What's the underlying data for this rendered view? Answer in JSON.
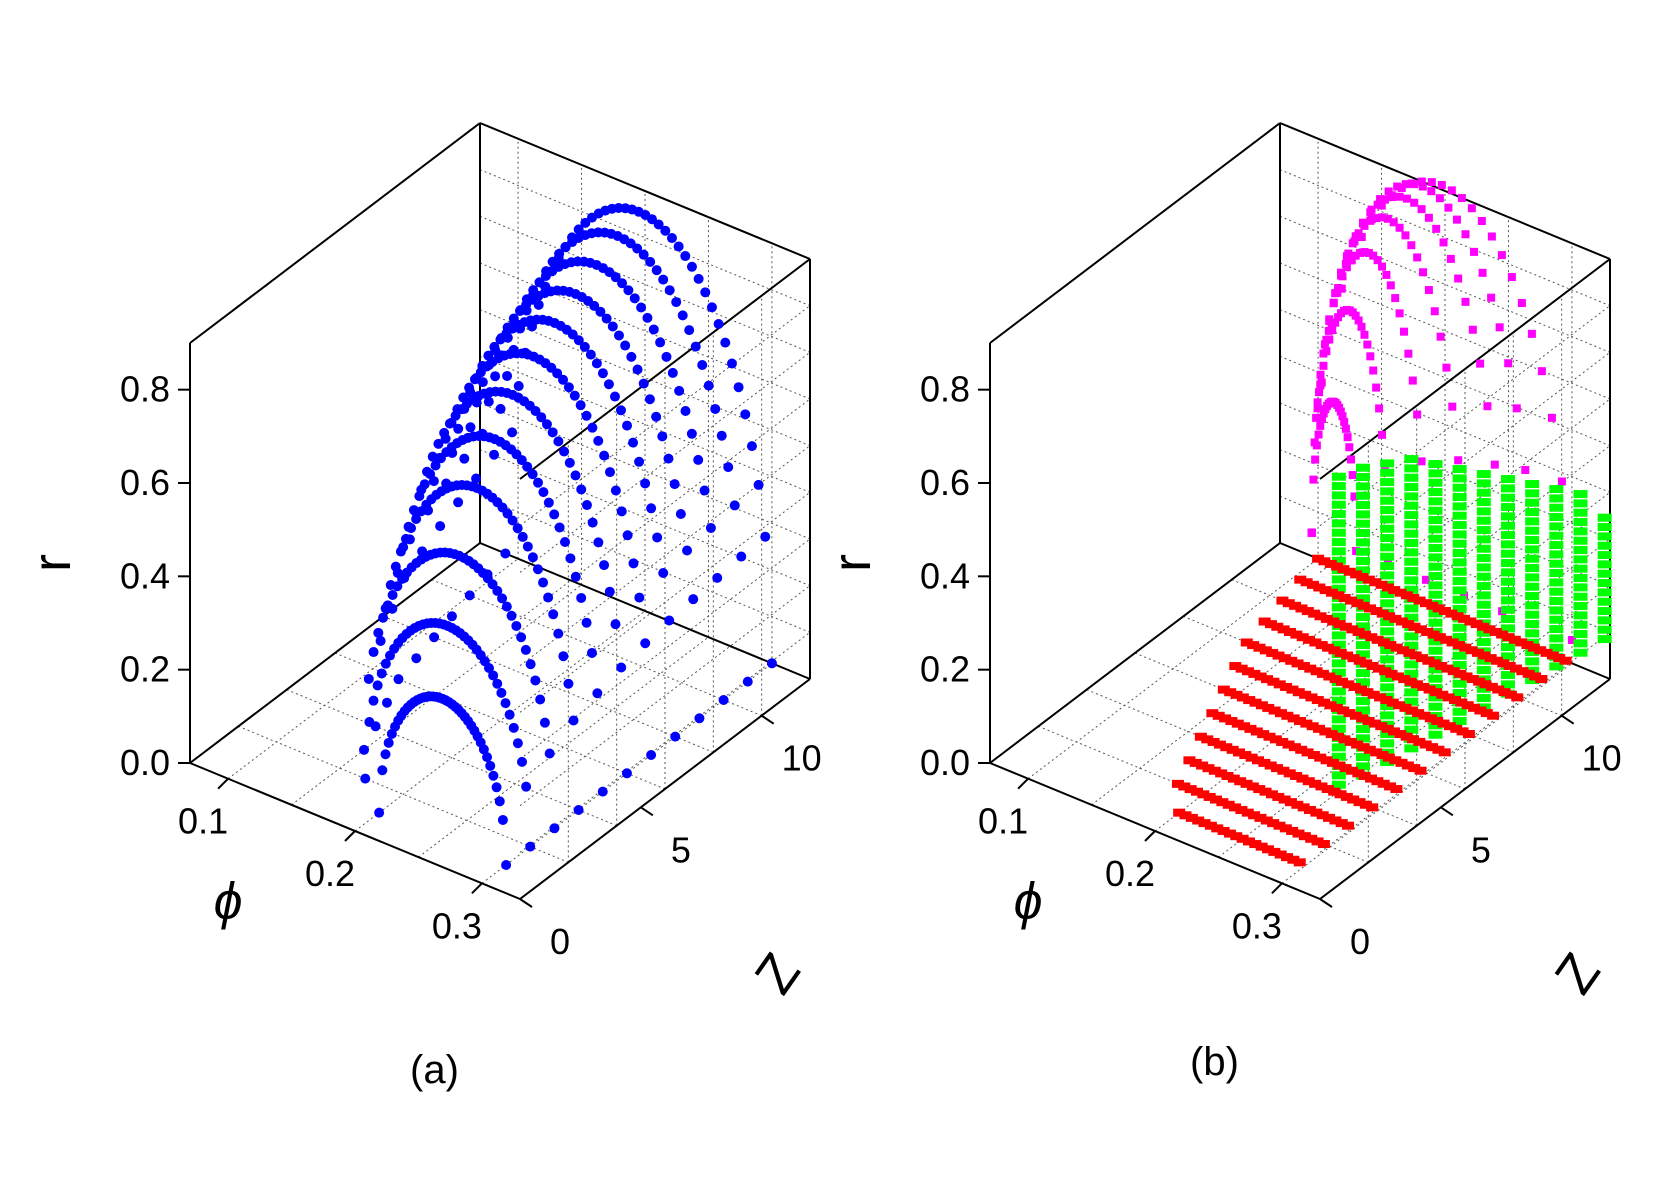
{
  "chart_data": [
    {
      "type": "scatter",
      "panel": "(a)",
      "xlabel": "ϕ",
      "ylabel": "r",
      "zlabel": "Z",
      "phi_ticks": [
        "0.1",
        "0.2",
        "0.3"
      ],
      "r_ticks": [
        "0.0",
        "0.2",
        "0.4",
        "0.6",
        "0.8"
      ],
      "z_ticks": [
        "0",
        "5",
        "10"
      ],
      "phi_range": [
        0.07,
        0.33
      ],
      "r_range": [
        0.0,
        0.9
      ],
      "z_range": [
        0,
        12
      ],
      "grid": true,
      "series": [
        {
          "color": "#0000ff",
          "description_values": {
            "z_levels": [
              1,
              2,
              3,
              4,
              5,
              6,
              7,
              8,
              9,
              10,
              11,
              12
            ],
            "phi_min": [
              0.2,
              0.17,
              0.15,
              0.14,
              0.13,
              0.12,
              0.115,
              0.11,
              0.105,
              0.1,
              0.095,
              0.09
            ],
            "phi_max": [
              0.3,
              0.3,
              0.3,
              0.3,
              0.3,
              0.3,
              0.3,
              0.3,
              0.3,
              0.3,
              0.3,
              0.3
            ],
            "r_peak": [
              0.3,
              0.4,
              0.5,
              0.6,
              0.66,
              0.71,
              0.75,
              0.78,
              0.8,
              0.82,
              0.84,
              0.85
            ]
          }
        }
      ]
    },
    {
      "type": "scatter",
      "panel": "(b)",
      "xlabel": "ϕ",
      "ylabel": "r",
      "zlabel": "Z",
      "phi_ticks": [
        "0.1",
        "0.2",
        "0.3"
      ],
      "r_ticks": [
        "0.0",
        "0.2",
        "0.4",
        "0.6",
        "0.8"
      ],
      "z_ticks": [
        "0",
        "5",
        "10"
      ],
      "phi_range": [
        0.07,
        0.33
      ],
      "r_range": [
        0.0,
        0.9
      ],
      "z_range": [
        0,
        12
      ],
      "grid": true,
      "series": [
        {
          "color": "#ff00ff",
          "projection": "phi-r",
          "arcs": [
            {
              "phi_min": 0.095,
              "phi_max": 0.13,
              "r_peak": 0.3
            },
            {
              "phi_min": 0.095,
              "phi_max": 0.155,
              "r_peak": 0.51
            },
            {
              "phi_min": 0.095,
              "phi_max": 0.185,
              "r_peak": 0.65
            },
            {
              "phi_min": 0.095,
              "phi_max": 0.215,
              "r_peak": 0.74
            },
            {
              "phi_min": 0.095,
              "phi_max": 0.245,
              "r_peak": 0.8
            },
            {
              "phi_min": 0.095,
              "phi_max": 0.27,
              "r_peak": 0.84
            },
            {
              "phi_min": 0.095,
              "phi_max": 0.3,
              "r_peak": 0.86
            }
          ]
        },
        {
          "color": "#00ff00",
          "projection": "z-r",
          "z_levels": [
            1,
            2,
            3,
            4,
            5,
            6,
            7,
            8,
            9,
            10,
            11,
            12
          ],
          "r_max": [
            0.88,
            0.85,
            0.82,
            0.79,
            0.75,
            0.7,
            0.65,
            0.6,
            0.55,
            0.5,
            0.45,
            0.35
          ],
          "r_min": [
            0.2,
            0.18,
            0.17,
            0.16,
            0.15,
            0.14,
            0.13,
            0.12,
            0.11,
            0.1,
            0.09,
            0.08
          ]
        },
        {
          "color": "#ff0000",
          "projection": "phi-z",
          "z_levels": [
            1,
            2,
            3,
            4,
            5,
            6,
            7,
            8,
            9,
            10,
            11,
            12
          ],
          "phi_min": [
            0.2,
            0.18,
            0.17,
            0.16,
            0.15,
            0.14,
            0.13,
            0.12,
            0.115,
            0.11,
            0.105,
            0.1
          ],
          "phi_max": [
            0.3,
            0.3,
            0.3,
            0.3,
            0.3,
            0.3,
            0.3,
            0.3,
            0.3,
            0.3,
            0.3,
            0.3
          ]
        }
      ]
    }
  ],
  "captions": {
    "a": "(a)",
    "b": "(b)"
  }
}
